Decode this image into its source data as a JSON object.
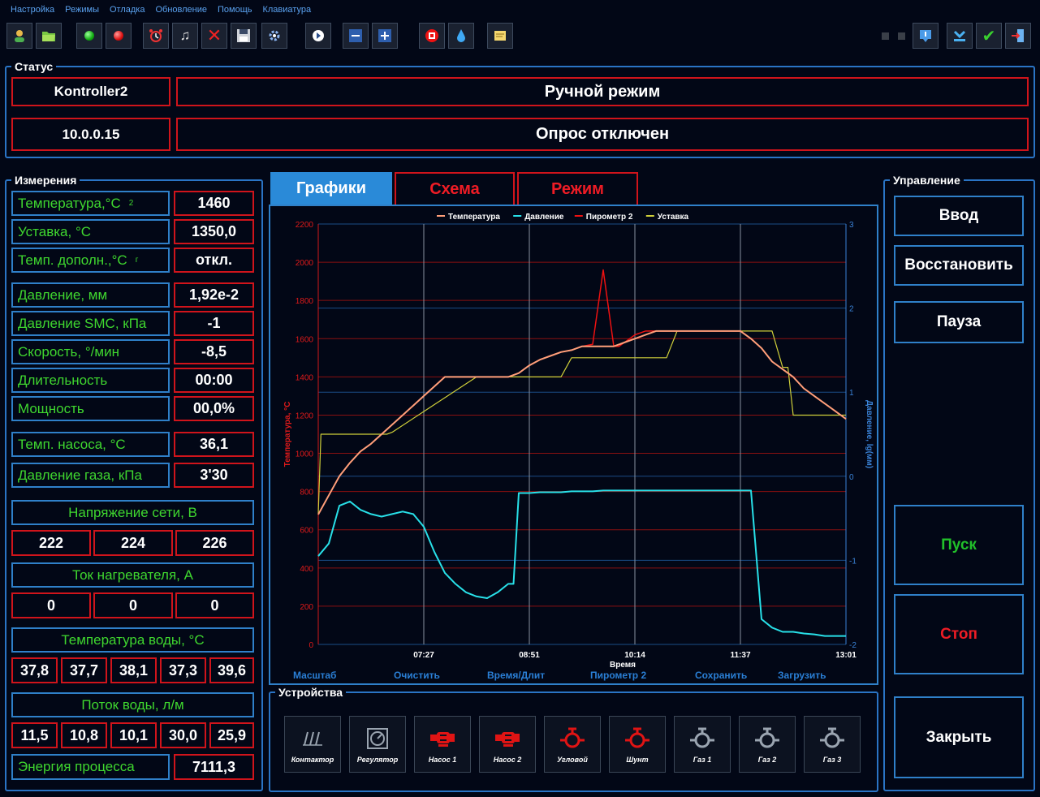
{
  "menu": [
    "Настройка",
    "Режимы",
    "Отладка",
    "Обновление",
    "Помощь",
    "Клавиатура"
  ],
  "toolbar_icons": [
    "user-icon",
    "folder-open-icon",
    "green-dot-icon",
    "red-dot-icon",
    "alarm-clock-icon",
    "music-note-icon",
    "close-icon",
    "save-icon",
    "settings-icon",
    "play-icon",
    "minus-icon",
    "plus-icon",
    "stop-icon",
    "water-drop-icon",
    "note-icon"
  ],
  "status": {
    "title": "Статус",
    "controller": "Kontroller2",
    "mode": "Ручной режим",
    "ip": "10.0.0.15",
    "poll": "Опрос отключен"
  },
  "measurements": {
    "title": "Измерения",
    "rows": [
      {
        "label": "Температура,°C",
        "sub": "2",
        "value": "1460"
      },
      {
        "label": "Уставка, °C",
        "sub": "",
        "value": "1350,0"
      },
      {
        "label": "Темп. дополн.,°C",
        "sub": "г",
        "value": "откл."
      },
      {
        "label": "Давление, мм",
        "sub": "",
        "value": "1,92e-2"
      },
      {
        "label": "Давление SMC, кПа",
        "sub": "",
        "value": "-1"
      },
      {
        "label": "Скорость, °/мин",
        "sub": "",
        "value": "-8,5"
      },
      {
        "label": "Длительность",
        "sub": "",
        "value": "00:00"
      },
      {
        "label": "Мощность",
        "sub": "",
        "value": "00,0%"
      },
      {
        "label": "Темп. насоса, °C",
        "sub": "",
        "value": "36,1"
      },
      {
        "label": "Давление газа, кПа",
        "sub": "",
        "value": "3'30"
      }
    ],
    "voltage": {
      "label": "Напряжение сети, В",
      "values": [
        "222",
        "224",
        "226"
      ]
    },
    "current": {
      "label": "Ток нагревателя, А",
      "values": [
        "0",
        "0",
        "0"
      ]
    },
    "water_temp": {
      "label": "Температура воды, °C",
      "values": [
        "37,8",
        "37,7",
        "38,1",
        "37,3",
        "39,6"
      ]
    },
    "water_flow": {
      "label": "Поток воды, л/м",
      "values": [
        "11,5",
        "10,8",
        "10,1",
        "30,0",
        "25,9"
      ]
    },
    "energy": {
      "label": "Энергия процесса",
      "value": "7111,3"
    }
  },
  "tabs": [
    "Графики",
    "Схема",
    "Режим"
  ],
  "chart_links": [
    "Масштаб",
    "Очистить",
    "Время/Длит",
    "Пирометр 2",
    "Сохранить",
    "Загрузить"
  ],
  "chart_data": {
    "type": "line",
    "xlabel": "Время",
    "ylabel": "Температура, °C",
    "ylabel_right": "Давление, lg(мм)",
    "x_ticks": [
      "07:27",
      "08:51",
      "10:14",
      "11:37",
      "13:01"
    ],
    "y_ticks": [
      "0",
      "200",
      "400",
      "600",
      "800",
      "1000",
      "1200",
      "1400",
      "1600",
      "1800",
      "2000",
      "2200"
    ],
    "y2_ticks": [
      "3",
      "2",
      "1",
      "0",
      "-1",
      "-2"
    ],
    "ylim": [
      0,
      2200
    ],
    "y2lim": [
      -2,
      3
    ],
    "legend_position": "top",
    "colors": {
      "temp": "#ff9f7a",
      "pressure": "#28e0e8",
      "pyro": "#ee1111",
      "setpoint": "#cfcf3a",
      "grid_red": "#8a1010",
      "grid_blue": "#1a4c86",
      "grid_white": "#8892a0"
    },
    "series": [
      {
        "name": "Температура",
        "x": [
          0,
          2,
          4,
          6,
          8,
          10,
          12,
          14,
          16,
          18,
          20,
          22,
          24,
          26,
          28,
          30,
          32,
          34,
          36,
          38,
          40,
          42,
          44,
          46,
          48,
          50,
          52,
          54,
          56,
          58,
          60,
          62,
          64,
          66,
          68,
          70,
          72,
          74,
          76,
          78,
          80,
          82,
          84,
          86,
          88,
          90,
          92,
          94,
          96,
          98,
          100
        ],
        "y": [
          680,
          780,
          880,
          950,
          1010,
          1050,
          1100,
          1150,
          1200,
          1250,
          1300,
          1350,
          1400,
          1400,
          1400,
          1400,
          1400,
          1400,
          1400,
          1420,
          1460,
          1490,
          1510,
          1530,
          1540,
          1560,
          1560,
          1560,
          1560,
          1580,
          1600,
          1620,
          1640,
          1640,
          1640,
          1640,
          1640,
          1640,
          1640,
          1640,
          1640,
          1600,
          1550,
          1480,
          1440,
          1400,
          1340,
          1300,
          1260,
          1220,
          1180
        ]
      },
      {
        "name": "Давление",
        "x": [
          0,
          2,
          4,
          6,
          8,
          10,
          12,
          14,
          16,
          18,
          20,
          22,
          24,
          26,
          28,
          30,
          32,
          34,
          36,
          37,
          38,
          39,
          40,
          42,
          44,
          46,
          48,
          50,
          52,
          54,
          56,
          58,
          60,
          62,
          64,
          66,
          68,
          70,
          72,
          74,
          76,
          78,
          80,
          82,
          84,
          86,
          88,
          90,
          92,
          94,
          96,
          98,
          100
        ],
        "y": [
          -0.95,
          -0.8,
          -0.35,
          -0.3,
          -0.4,
          -0.45,
          -0.48,
          -0.45,
          -0.42,
          -0.45,
          -0.6,
          -0.9,
          -1.15,
          -1.28,
          -1.38,
          -1.43,
          -1.45,
          -1.38,
          -1.28,
          -1.28,
          -0.2,
          -0.2,
          -0.2,
          -0.19,
          -0.19,
          -0.19,
          -0.18,
          -0.18,
          -0.18,
          -0.17,
          -0.17,
          -0.17,
          -0.17,
          -0.17,
          -0.17,
          -0.17,
          -0.17,
          -0.17,
          -0.17,
          -0.17,
          -0.17,
          -0.17,
          -0.17,
          -0.17,
          -1.7,
          -1.8,
          -1.85,
          -1.85,
          -1.87,
          -1.88,
          -1.9,
          -1.9,
          -1.9
        ]
      },
      {
        "name": "Пирометр 2",
        "x": [
          0,
          2,
          4,
          6,
          8,
          10,
          12,
          14,
          16,
          18,
          20,
          22,
          24,
          26,
          28,
          30,
          32,
          34,
          36,
          38,
          40,
          42,
          44,
          46,
          48,
          50,
          52,
          54,
          56,
          57,
          58,
          59,
          60,
          62,
          64,
          66,
          68,
          70,
          72,
          74,
          76,
          78,
          80,
          82,
          84,
          86,
          88,
          90,
          92,
          94,
          96,
          98,
          100
        ],
        "y": [
          680,
          780,
          880,
          950,
          1010,
          1050,
          1100,
          1150,
          1200,
          1250,
          1300,
          1350,
          1400,
          1400,
          1400,
          1400,
          1400,
          1400,
          1400,
          1420,
          1460,
          1490,
          1510,
          1530,
          1540,
          1560,
          1570,
          1960,
          1560,
          1560,
          1580,
          1600,
          1620,
          1640,
          1640,
          1640,
          1640,
          1640,
          1640,
          1640,
          1640,
          1640,
          1640,
          1600,
          1550,
          1480,
          1440,
          1400,
          1340,
          1300,
          1260,
          1220,
          1180
        ]
      },
      {
        "name": "Уставка",
        "x": [
          0,
          0.5,
          1,
          13,
          14,
          30,
          32,
          46,
          48,
          66,
          68,
          70,
          82,
          84,
          86,
          88,
          89,
          90,
          100
        ],
        "y": [
          680,
          1100,
          1100,
          1100,
          1110,
          1400,
          1400,
          1400,
          1500,
          1500,
          1640,
          1640,
          1640,
          1640,
          1640,
          1450,
          1450,
          1200,
          1200
        ]
      }
    ]
  },
  "devices": {
    "title": "Устройства",
    "items": [
      {
        "label": "Контактор",
        "icon": "contactor-icon",
        "color": "#9aa4b0"
      },
      {
        "label": "Регулятор",
        "icon": "regulator-icon",
        "color": "#9aa4b0"
      },
      {
        "label": "Насос 1",
        "icon": "pump-icon",
        "color": "#e01414"
      },
      {
        "label": "Насос 2",
        "icon": "pump-icon",
        "color": "#e01414"
      },
      {
        "label": "Угловой",
        "icon": "valve-icon",
        "color": "#e01414"
      },
      {
        "label": "Шунт",
        "icon": "valve-icon",
        "color": "#e01414"
      },
      {
        "label": "Газ 1",
        "icon": "valve-icon",
        "color": "#9aa4b0"
      },
      {
        "label": "Газ 2",
        "icon": "valve-icon",
        "color": "#9aa4b0"
      },
      {
        "label": "Газ 3",
        "icon": "valve-icon",
        "color": "#9aa4b0"
      }
    ]
  },
  "control": {
    "title": "Управление",
    "enter": "Ввод",
    "restore": "Восстановить",
    "pause": "Пауза",
    "start": "Пуск",
    "start_color": "#21c02a",
    "stop": "Стоп",
    "stop_color": "#ee1c25",
    "close": "Закрыть"
  }
}
